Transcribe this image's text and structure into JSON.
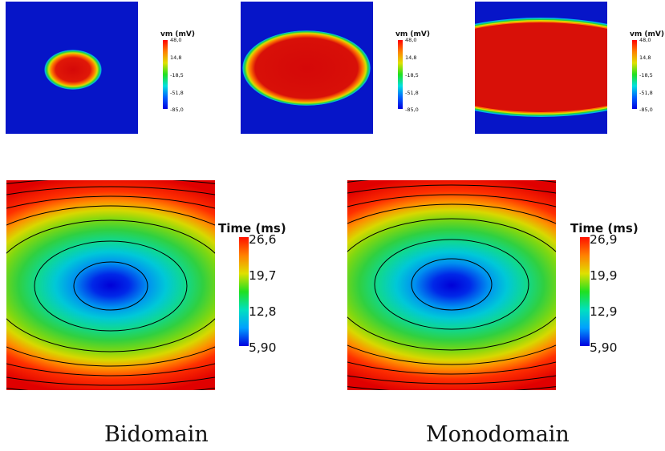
{
  "top_panels": [
    {
      "id": "t0",
      "colorbar": {
        "title": "vm (mV)",
        "ticks": [
          "48,0",
          "14,8",
          "-18,5",
          "-51,8",
          "-85,0"
        ]
      }
    },
    {
      "id": "t1",
      "colorbar": {
        "title": "vm (mV)",
        "ticks": [
          "48,0",
          "14,8",
          "-18,5",
          "-51,8",
          "-85,0"
        ]
      }
    },
    {
      "id": "t2",
      "colorbar": {
        "title": "vm (mV)",
        "ticks": [
          "48,0",
          "14,8",
          "-18,5",
          "-51,8",
          "-85,0"
        ]
      }
    }
  ],
  "bottom_panels": [
    {
      "id": "bidomain",
      "caption": "Bidomain",
      "colorbar": {
        "title": "Time (ms)",
        "ticks": [
          "26,6",
          "19,7",
          "12,8",
          "5,90"
        ]
      }
    },
    {
      "id": "monodomain",
      "caption": "Monodomain",
      "colorbar": {
        "title": "Time (ms)",
        "ticks": [
          "26,9",
          "19,9",
          "12,9",
          "5,90"
        ]
      }
    }
  ],
  "colors": {
    "background_blue": "#0615c8",
    "jet_red": "#d10a0a",
    "jet_orange": "#ff5a00",
    "jet_yellow": "#d8d400",
    "jet_green": "#2ad23a",
    "jet_cyan": "#00c8e8",
    "jet_blue": "#0000e0",
    "contour": "#000000"
  }
}
